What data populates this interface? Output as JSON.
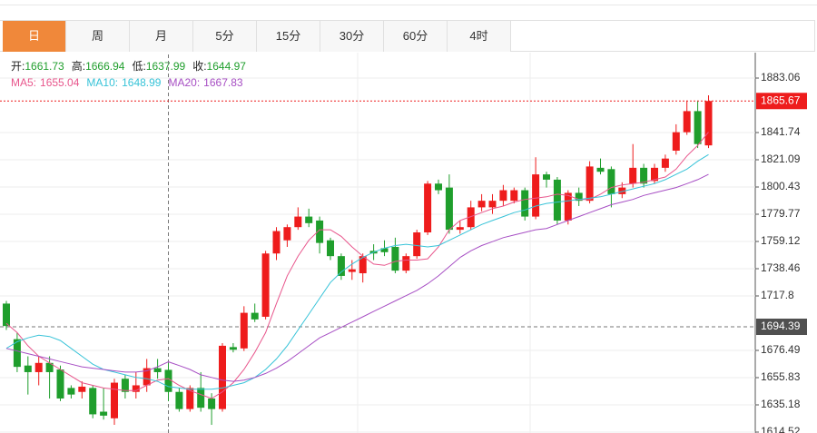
{
  "tabs": [
    "日",
    "周",
    "月",
    "5分",
    "15分",
    "30分",
    "60分",
    "4时"
  ],
  "active_tab": 0,
  "info": [
    {
      "label": "开:",
      "value": 1661.73
    },
    {
      "label": "高:",
      "value": 1666.94
    },
    {
      "label": "低:",
      "value": 1637.99
    },
    {
      "label": "收:",
      "value": 1644.97
    }
  ],
  "legend": [
    {
      "label": "MA5:",
      "value": 1655.04
    },
    {
      "label": "MA10:",
      "value": 1648.99
    },
    {
      "label": "MA20:",
      "value": 1667.83
    }
  ],
  "chart_data": {
    "type": "candlestick",
    "up_color": "#ee1c1c",
    "down_color": "#1f9e2c",
    "info_color": "#1f9e2c",
    "open": [
      1712,
      1685,
      1665,
      1660,
      1667,
      1662,
      1648,
      1645,
      1648,
      1630,
      1625,
      1655,
      1645,
      1650,
      1663,
      1661.73,
      1645,
      1632,
      1648,
      1640,
      1632,
      1679,
      1678,
      1705,
      1702,
      1750,
      1760,
      1770,
      1778,
      1775,
      1760,
      1748,
      1736,
      1735,
      1752,
      1754,
      1755,
      1737,
      1748,
      1766,
      1803,
      1800,
      1768,
      1770,
      1785,
      1785,
      1790,
      1790,
      1798,
      1778,
      1810,
      1806,
      1775,
      1796,
      1790,
      1815,
      1814,
      1795,
      1803,
      1815,
      1805,
      1815,
      1828,
      1842,
      1858,
      1832
    ],
    "high": [
      1714,
      1690,
      1672,
      1672,
      1672,
      1665,
      1650,
      1653,
      1650,
      1648,
      1655,
      1658,
      1660,
      1670,
      1670,
      1666.94,
      1648,
      1650,
      1660,
      1644,
      1682,
      1682,
      1710,
      1712,
      1752,
      1770,
      1772,
      1785,
      1784,
      1778,
      1762,
      1750,
      1745,
      1750,
      1757,
      1760,
      1762,
      1750,
      1768,
      1805,
      1806,
      1810,
      1775,
      1790,
      1795,
      1795,
      1802,
      1800,
      1800,
      1823,
      1812,
      1808,
      1798,
      1800,
      1820,
      1822,
      1816,
      1804,
      1833,
      1818,
      1818,
      1825,
      1848,
      1866,
      1866,
      1870
    ],
    "low": [
      1692,
      1660,
      1643,
      1650,
      1640,
      1638,
      1640,
      1640,
      1625,
      1624,
      1620,
      1640,
      1640,
      1645,
      1655,
      1637.99,
      1630,
      1630,
      1630,
      1620,
      1630,
      1675,
      1676,
      1698,
      1700,
      1745,
      1755,
      1768,
      1770,
      1750,
      1745,
      1730,
      1730,
      1728,
      1745,
      1748,
      1735,
      1735,
      1746,
      1764,
      1795,
      1765,
      1765,
      1768,
      1782,
      1780,
      1786,
      1788,
      1775,
      1776,
      1800,
      1772,
      1772,
      1786,
      1788,
      1810,
      1785,
      1792,
      1800,
      1800,
      1803,
      1812,
      1825,
      1840,
      1830,
      1830
    ],
    "close": [
      1695,
      1664,
      1660,
      1667,
      1660,
      1640,
      1643,
      1649,
      1628,
      1627,
      1652,
      1645,
      1650,
      1663,
      1660,
      1644.97,
      1632,
      1648,
      1633,
      1632,
      1680,
      1677,
      1705,
      1700,
      1750,
      1767,
      1770,
      1778,
      1773,
      1758,
      1748,
      1733,
      1738,
      1748,
      1750,
      1751,
      1737,
      1748,
      1766,
      1803,
      1798,
      1768,
      1770,
      1785,
      1790,
      1790,
      1798,
      1798,
      1778,
      1810,
      1806,
      1775,
      1796,
      1790,
      1816,
      1812,
      1795,
      1800,
      1815,
      1803,
      1815,
      1822,
      1842,
      1858,
      1833,
      1865.67
    ],
    "series": [
      {
        "color": "#e8568c",
        "values": [
          1697,
          1690,
          1680,
          1672,
          1667,
          1662,
          1657,
          1652,
          1650,
          1648,
          1647,
          1646,
          1646,
          1650,
          1654,
          1655.04,
          1650,
          1646,
          1643,
          1640,
          1645,
          1652,
          1662,
          1675,
          1690,
          1712,
          1733,
          1748,
          1760,
          1768,
          1768,
          1763,
          1755,
          1748,
          1742,
          1741,
          1744,
          1745,
          1745,
          1746,
          1755,
          1768,
          1775,
          1778,
          1781,
          1784,
          1786,
          1789,
          1791,
          1792,
          1793,
          1795,
          1794,
          1791,
          1791,
          1795,
          1800,
          1802,
          1803,
          1804,
          1806,
          1808,
          1814,
          1824,
          1832,
          1842
        ]
      },
      {
        "color": "#37c3d8",
        "values": [
          1678,
          1683,
          1686,
          1688,
          1687,
          1684,
          1678,
          1672,
          1666,
          1662,
          1660,
          1658,
          1656,
          1655,
          1653,
          1648.99,
          1648,
          1647,
          1647,
          1647,
          1648,
          1650,
          1652,
          1656,
          1662,
          1670,
          1680,
          1692,
          1704,
          1716,
          1728,
          1736,
          1742,
          1747,
          1751,
          1754,
          1756,
          1757,
          1756,
          1755,
          1756,
          1760,
          1764,
          1768,
          1772,
          1775,
          1778,
          1781,
          1783,
          1786,
          1788,
          1789,
          1790,
          1791,
          1792,
          1793,
          1795,
          1797,
          1799,
          1801,
          1803,
          1806,
          1810,
          1814,
          1820,
          1825
        ]
      },
      {
        "color": "#a74fc4",
        "values": [
          1678,
          1676,
          1674,
          1672,
          1670,
          1668,
          1666,
          1664,
          1663,
          1662,
          1661,
          1660,
          1660,
          1661,
          1664,
          1667.83,
          1665,
          1662,
          1658,
          1656,
          1654,
          1653,
          1654,
          1656,
          1659,
          1663,
          1668,
          1674,
          1680,
          1686,
          1690,
          1694,
          1698,
          1702,
          1706,
          1710,
          1714,
          1718,
          1722,
          1727,
          1733,
          1740,
          1747,
          1752,
          1756,
          1759,
          1762,
          1764,
          1766,
          1768,
          1769,
          1772,
          1775,
          1778,
          1781,
          1784,
          1787,
          1789,
          1791,
          1794,
          1796,
          1798,
          1800,
          1803,
          1806,
          1810
        ]
      }
    ],
    "ylim": [
      1613.83,
      1900.97
    ],
    "yticks": [
      1883.06,
      1841.74,
      1821.09,
      1800.43,
      1779.77,
      1759.12,
      1738.46,
      1717.8,
      1676.49,
      1655.83,
      1635.18,
      1614.52
    ],
    "grid": true,
    "last_price": 1865.67,
    "crosshair": {
      "index": 15,
      "value": 1694.39
    }
  }
}
